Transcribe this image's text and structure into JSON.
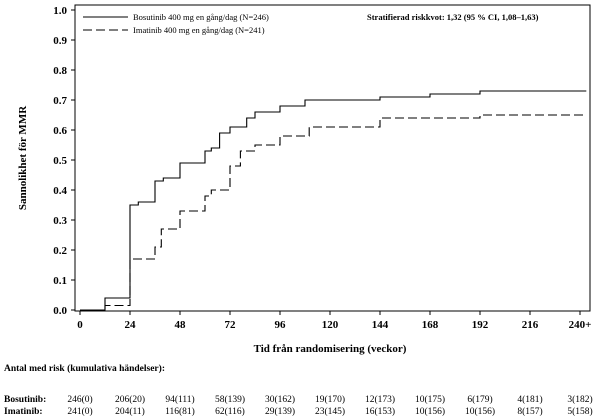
{
  "chart_data": {
    "type": "line",
    "ylabel": "Sannolikhet för MMR",
    "xlabel": "Tid från randomisering (veckor)",
    "xlim": [
      0,
      240
    ],
    "ylim": [
      0,
      1.0
    ],
    "x_ticks": [
      "0",
      "24",
      "48",
      "72",
      "96",
      "120",
      "144",
      "168",
      "192",
      "216",
      "240+"
    ],
    "x_tick_values": [
      0,
      24,
      48,
      72,
      96,
      120,
      144,
      168,
      192,
      216,
      240
    ],
    "y_ticks": [
      "0.0",
      "0.1",
      "0.2",
      "0.3",
      "0.4",
      "0.5",
      "0.6",
      "0.7",
      "0.8",
      "0.9",
      "1.0"
    ],
    "y_tick_values": [
      0,
      0.1,
      0.2,
      0.3,
      0.4,
      0.5,
      0.6,
      0.7,
      0.8,
      0.9,
      1.0
    ],
    "legend_placement": "top-left",
    "annotation": "Stratifierad riskkvot: 1,32 (95 % CI, 1,08–1,63)",
    "series": [
      {
        "name": "Bosutinib 400 mg en gång/dag (N=246)",
        "style": "solid",
        "color": "#000000",
        "points": [
          [
            0,
            0
          ],
          [
            12,
            0
          ],
          [
            12,
            0.04
          ],
          [
            24,
            0.04
          ],
          [
            24,
            0.35
          ],
          [
            28,
            0.35
          ],
          [
            28,
            0.36
          ],
          [
            36,
            0.36
          ],
          [
            36,
            0.43
          ],
          [
            40,
            0.43
          ],
          [
            40,
            0.44
          ],
          [
            48,
            0.44
          ],
          [
            48,
            0.49
          ],
          [
            60,
            0.49
          ],
          [
            60,
            0.53
          ],
          [
            63,
            0.53
          ],
          [
            63,
            0.54
          ],
          [
            67,
            0.54
          ],
          [
            67,
            0.59
          ],
          [
            72,
            0.59
          ],
          [
            72,
            0.61
          ],
          [
            80,
            0.61
          ],
          [
            80,
            0.64
          ],
          [
            84,
            0.64
          ],
          [
            84,
            0.66
          ],
          [
            96,
            0.66
          ],
          [
            96,
            0.68
          ],
          [
            108,
            0.68
          ],
          [
            108,
            0.7
          ],
          [
            144,
            0.7
          ],
          [
            144,
            0.71
          ],
          [
            168,
            0.71
          ],
          [
            168,
            0.72
          ],
          [
            192,
            0.72
          ],
          [
            192,
            0.73
          ],
          [
            243,
            0.73
          ]
        ]
      },
      {
        "name": "Imatinib 400 mg en gång/dag (N=241)",
        "style": "dashed",
        "color": "#000000",
        "points": [
          [
            0,
            0
          ],
          [
            12,
            0
          ],
          [
            12,
            0.015
          ],
          [
            24,
            0.015
          ],
          [
            24,
            0.17
          ],
          [
            36,
            0.17
          ],
          [
            36,
            0.21
          ],
          [
            39,
            0.21
          ],
          [
            39,
            0.27
          ],
          [
            48,
            0.27
          ],
          [
            48,
            0.33
          ],
          [
            60,
            0.33
          ],
          [
            60,
            0.38
          ],
          [
            63,
            0.38
          ],
          [
            63,
            0.4
          ],
          [
            72,
            0.4
          ],
          [
            72,
            0.48
          ],
          [
            77,
            0.48
          ],
          [
            77,
            0.53
          ],
          [
            84,
            0.53
          ],
          [
            84,
            0.55
          ],
          [
            96,
            0.55
          ],
          [
            96,
            0.58
          ],
          [
            110,
            0.58
          ],
          [
            110,
            0.61
          ],
          [
            144,
            0.61
          ],
          [
            144,
            0.64
          ],
          [
            192,
            0.64
          ],
          [
            192,
            0.65
          ],
          [
            243,
            0.65
          ]
        ]
      }
    ],
    "risk_table": {
      "title": "Antal med risk (kumulativa händelser):",
      "rows": [
        {
          "label": "Bosutinib:",
          "values": [
            "246(0)",
            "206(20)",
            "94(111)",
            "58(139)",
            "30(162)",
            "19(170)",
            "12(173)",
            "10(175)",
            "6(179)",
            "4(181)",
            "3(182)"
          ]
        },
        {
          "label": "Imatinib:",
          "values": [
            "241(0)",
            "204(11)",
            "116(81)",
            "62(116)",
            "29(139)",
            "23(145)",
            "16(153)",
            "10(156)",
            "10(156)",
            "8(157)",
            "5(158)"
          ]
        }
      ]
    }
  }
}
